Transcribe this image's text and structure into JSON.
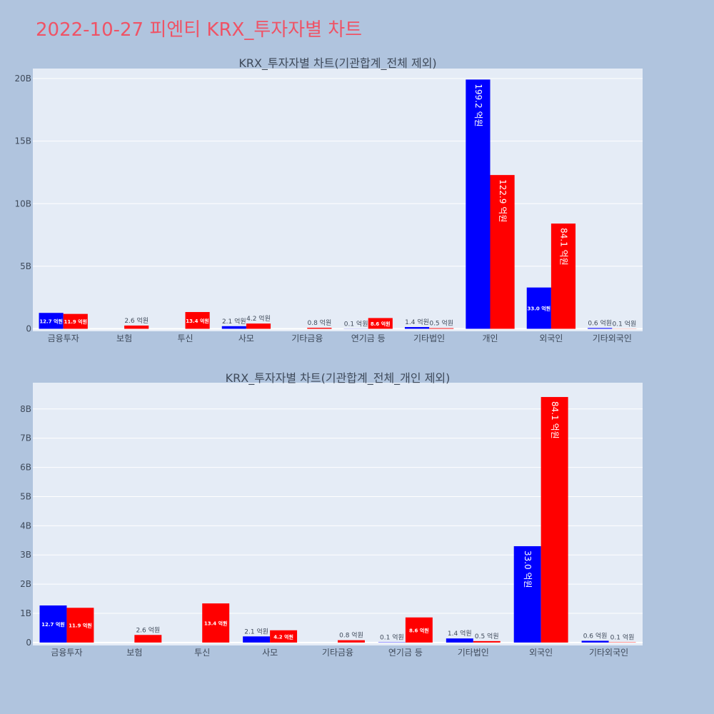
{
  "page": {
    "title": "2022-10-27 피엔티 KRX_투자자별 차트"
  },
  "chart_data": [
    {
      "type": "bar",
      "title": "KRX_투자자별 차트(기관합계_전체 제외)",
      "categories": [
        "금융투자",
        "보험",
        "투신",
        "사모",
        "기타금융",
        "연기금 등",
        "기타법인",
        "개인",
        "외국인",
        "기타외국인"
      ],
      "series": [
        {
          "color": "#0000ff",
          "values": [
            1.27,
            0,
            0,
            0.21,
            0,
            0.01,
            0.14,
            19.92,
            3.3,
            0.06
          ]
        },
        {
          "color": "#ff0000",
          "values": [
            1.19,
            0.26,
            1.34,
            0.42,
            0.08,
            0.86,
            0.05,
            12.29,
            8.41,
            0.01
          ]
        }
      ],
      "labels": [
        [
          "12.7 억원",
          "",
          "",
          "2.1 억원",
          "",
          "0.1 억원",
          "1.4 억원",
          "199.2 억원",
          "33.0 억원",
          "0.6 억원"
        ],
        [
          "11.9 억원",
          "2.6 억원",
          "13.4 억원",
          "4.2 억원",
          "0.8 억원",
          "8.6 억원",
          "0.5 억원",
          "122.9 억원",
          "84.1 억원",
          "0.1 억원"
        ]
      ],
      "yticks": [
        0,
        5,
        10,
        15,
        20
      ],
      "ytick_labels": [
        "0",
        "5B",
        "10B",
        "15B",
        "20B"
      ],
      "ylim": [
        -0.2,
        20.8
      ],
      "grid": true
    },
    {
      "type": "bar",
      "title": "KRX_투자자별 차트(기관합계_전체_개인 제외)",
      "categories": [
        "금융투자",
        "보험",
        "투신",
        "사모",
        "기타금융",
        "연기금 등",
        "기타법인",
        "외국인",
        "기타외국인"
      ],
      "series": [
        {
          "color": "#0000ff",
          "values": [
            1.27,
            0,
            0,
            0.21,
            0,
            0.01,
            0.14,
            3.3,
            0.06
          ]
        },
        {
          "color": "#ff0000",
          "values": [
            1.19,
            0.26,
            1.34,
            0.42,
            0.08,
            0.86,
            0.05,
            8.41,
            0.01
          ]
        }
      ],
      "labels": [
        [
          "12.7 억원",
          "",
          "",
          "2.1 억원",
          "",
          "0.1 억원",
          "1.4 억원",
          "33.0 억원",
          "0.6 억원"
        ],
        [
          "11.9 억원",
          "2.6 억원",
          "13.4 억원",
          "4.2 억원",
          "0.8 억원",
          "8.6 억원",
          "0.5 억원",
          "84.1 억원",
          "0.1 억원"
        ]
      ],
      "yticks": [
        0,
        1,
        2,
        3,
        4,
        5,
        6,
        7,
        8
      ],
      "ytick_labels": [
        "0",
        "1B",
        "2B",
        "3B",
        "4B",
        "5B",
        "6B",
        "7B",
        "8B"
      ],
      "ylim": [
        -0.1,
        8.9
      ],
      "grid": true
    }
  ]
}
